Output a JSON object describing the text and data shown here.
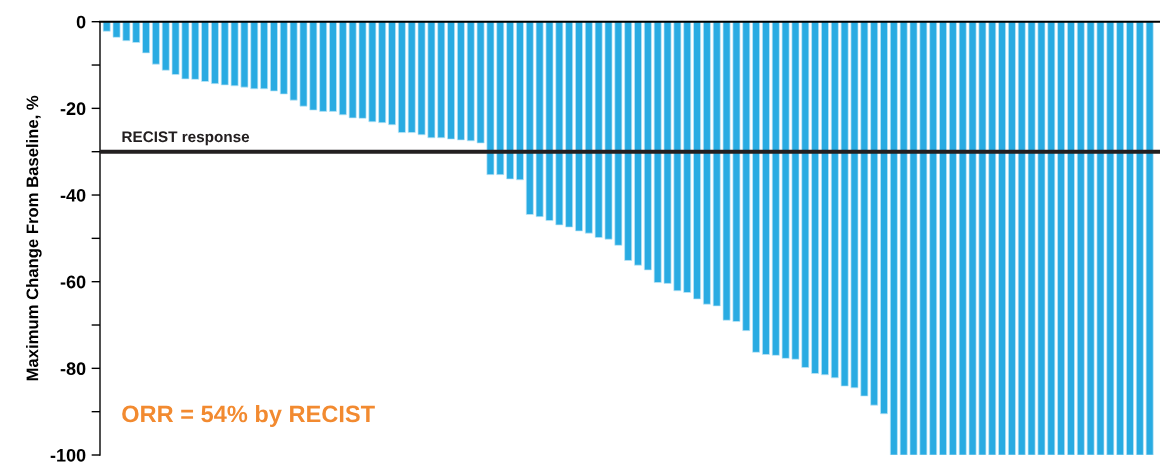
{
  "chart_data": {
    "type": "bar",
    "ylabel": "Maximum Change From Baseline, %",
    "categories": [
      null,
      null,
      null,
      null,
      null,
      null,
      null,
      null,
      null,
      null,
      null,
      null,
      null,
      null,
      null,
      null,
      null,
      null,
      null,
      null,
      null,
      null,
      null,
      null,
      null,
      null,
      null,
      null,
      null,
      null,
      null,
      null,
      null,
      null,
      null,
      null,
      null,
      null,
      null,
      null,
      null,
      null,
      null,
      null,
      null,
      null,
      null,
      null,
      null,
      null,
      null,
      null,
      null,
      null,
      null,
      null,
      null,
      null,
      null,
      null,
      null,
      null,
      null,
      null,
      null,
      null,
      null,
      null,
      null,
      null,
      null,
      null,
      null,
      null,
      null,
      null,
      null,
      null,
      null,
      null,
      null,
      null,
      null,
      null,
      null,
      null,
      null,
      null,
      null,
      null,
      null,
      null,
      null,
      null,
      null,
      null,
      null,
      null,
      null,
      null,
      null,
      null,
      null,
      null,
      null,
      null,
      null
    ],
    "values": [
      -2.2,
      -3.6,
      -4.4,
      -4.8,
      -7.2,
      -9.8,
      -11.2,
      -12.2,
      -13.2,
      -13.3,
      -13.8,
      -14.3,
      -14.6,
      -14.8,
      -15.1,
      -15.5,
      -15.5,
      -16.0,
      -16.7,
      -18.1,
      -19.5,
      -20.4,
      -20.7,
      -20.7,
      -21.5,
      -22.2,
      -22.3,
      -23.1,
      -23.3,
      -23.8,
      -25.6,
      -25.6,
      -26.1,
      -26.8,
      -26.8,
      -27.1,
      -27.3,
      -27.5,
      -28.0,
      -35.3,
      -35.3,
      -36.3,
      -36.5,
      -44.5,
      -45.0,
      -45.9,
      -46.9,
      -47.4,
      -48.3,
      -48.8,
      -49.8,
      -50.2,
      -51.6,
      -55.1,
      -56.2,
      -57.3,
      -60.2,
      -60.4,
      -62.1,
      -62.5,
      -64.0,
      -65.2,
      -65.6,
      -68.9,
      -69.2,
      -71.3,
      -76.3,
      -76.8,
      -77.0,
      -77.7,
      -77.9,
      -79.8,
      -81.2,
      -81.5,
      -82.2,
      -84.1,
      -84.5,
      -86.4,
      -88.5,
      -90.5,
      -100,
      -100,
      -100,
      -100,
      -100,
      -100,
      -100,
      -100,
      -100,
      -100,
      -100,
      -100,
      -100,
      -100,
      -100,
      -100,
      -100,
      -100,
      -100,
      -100,
      -100,
      -100,
      -100,
      -100,
      -100,
      -100,
      -100
    ],
    "color": "#29abe2",
    "ylim": [
      -100,
      0
    ],
    "yticks": [
      0,
      {
        "value": -10,
        "label": null
      },
      -20,
      {
        "value": -30,
        "label": null
      },
      -40,
      {
        "value": -50,
        "label": null
      },
      -60,
      {
        "value": -70,
        "label": null
      },
      -80,
      {
        "value": -90,
        "label": null
      },
      -100
    ],
    "ref_lines": [
      {
        "axis": "y",
        "value": -30,
        "label": "RECIST response",
        "color": "#231f20"
      }
    ],
    "annotations": [
      "ORR = 54% by RECIST"
    ],
    "grid": false,
    "legend": false
  }
}
